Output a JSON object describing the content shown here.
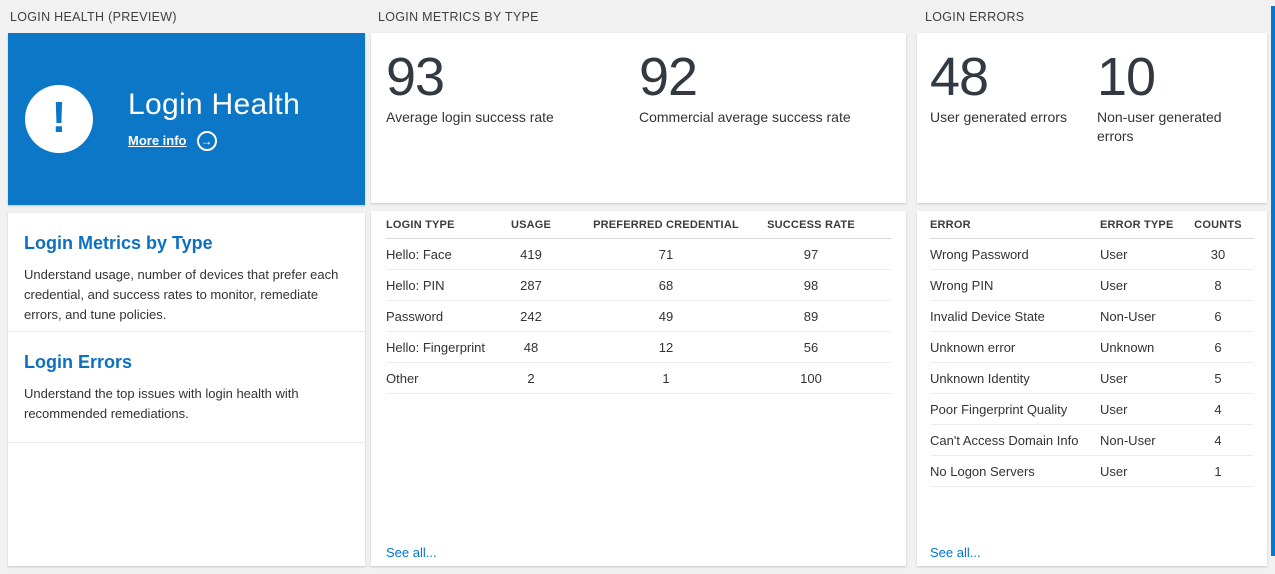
{
  "colors": {
    "accent": "#0078d4",
    "tile_blue": "#0c76c7",
    "heading_blue": "#0d6fbf"
  },
  "icons": {
    "exclamation_glyph": "!",
    "arrow_right_glyph": "→"
  },
  "panels": {
    "health": {
      "header": "LOGIN HEALTH (PREVIEW)",
      "tile": {
        "title": "Login Health",
        "more_info": "More info"
      },
      "sections": [
        {
          "title": "Login Metrics by Type",
          "description": "Understand usage, number of devices that prefer each credential, and success rates to monitor, remediate errors, and tune policies."
        },
        {
          "title": "Login Errors",
          "description": "Understand the top issues with login health with recommended remediations."
        }
      ]
    },
    "metrics": {
      "header": "LOGIN METRICS BY TYPE",
      "stats": [
        {
          "value": "93",
          "label": "Average login success rate"
        },
        {
          "value": "92",
          "label": "Commercial average success rate"
        }
      ],
      "table": {
        "columns": [
          "LOGIN TYPE",
          "USAGE",
          "PREFERRED CREDENTIAL",
          "SUCCESS RATE"
        ],
        "rows": [
          [
            "Hello: Face",
            "419",
            "71",
            "97"
          ],
          [
            "Hello: PIN",
            "287",
            "68",
            "98"
          ],
          [
            "Password",
            "242",
            "49",
            "89"
          ],
          [
            "Hello: Fingerprint",
            "48",
            "12",
            "56"
          ],
          [
            "Other",
            "2",
            "1",
            "100"
          ]
        ]
      },
      "see_all": "See all..."
    },
    "errors": {
      "header": "LOGIN ERRORS",
      "stats": [
        {
          "value": "48",
          "label": "User generated errors"
        },
        {
          "value": "10",
          "label": "Non-user generated errors"
        }
      ],
      "table": {
        "columns": [
          "ERROR",
          "ERROR TYPE",
          "COUNTS"
        ],
        "rows": [
          [
            "Wrong Password",
            "User",
            "30"
          ],
          [
            "Wrong PIN",
            "User",
            "8"
          ],
          [
            "Invalid Device State",
            "Non-User",
            "6"
          ],
          [
            "Unknown error",
            "Unknown",
            "6"
          ],
          [
            "Unknown Identity",
            "User",
            "5"
          ],
          [
            "Poor Fingerprint Quality",
            "User",
            "4"
          ],
          [
            "Can't Access Domain Info",
            "Non-User",
            "4"
          ],
          [
            "No Logon Servers",
            "User",
            "1"
          ]
        ]
      },
      "see_all": "See all..."
    }
  }
}
